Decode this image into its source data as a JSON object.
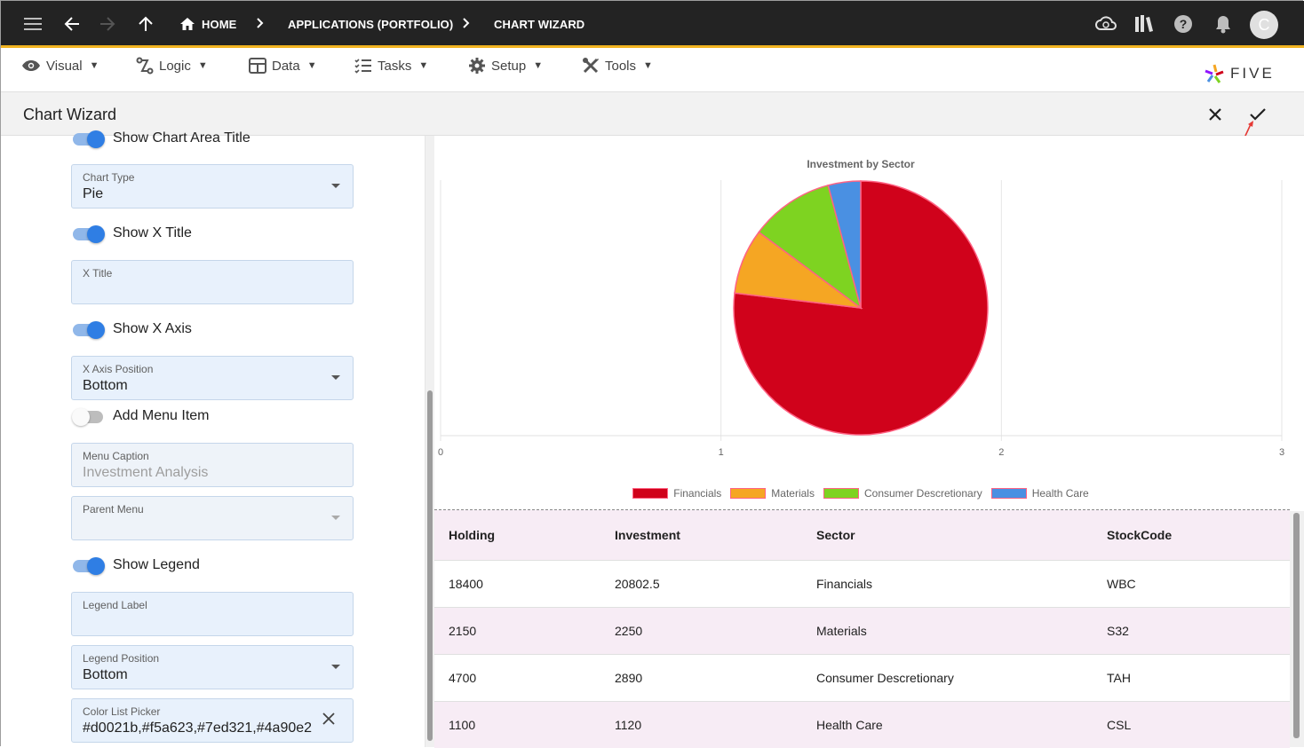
{
  "topbar": {
    "breadcrumbs": [
      "HOME",
      "APPLICATIONS (PORTFOLIO)",
      "CHART WIZARD"
    ],
    "avatar_letter": "C"
  },
  "menu": {
    "items": [
      {
        "label": "Visual",
        "icon": "eye-icon"
      },
      {
        "label": "Logic",
        "icon": "logic-icon"
      },
      {
        "label": "Data",
        "icon": "table-icon"
      },
      {
        "label": "Tasks",
        "icon": "tasks-icon"
      },
      {
        "label": "Setup",
        "icon": "gear-icon"
      },
      {
        "label": "Tools",
        "icon": "tools-icon"
      }
    ],
    "caret": "▼",
    "logo_text": "FIVE"
  },
  "page": {
    "title": "Chart Wizard"
  },
  "form": {
    "show_chart_area_title": "Show Chart Area Title",
    "chart_type_label": "Chart Type",
    "chart_type_value": "Pie",
    "show_x_title": "Show X Title",
    "x_title_label": "X Title",
    "x_title_value": "",
    "show_x_axis": "Show X Axis",
    "x_axis_position_label": "X Axis Position",
    "x_axis_position_value": "Bottom",
    "add_menu_item": "Add Menu Item",
    "menu_caption_label": "Menu Caption",
    "menu_caption_value": "Investment Analysis",
    "parent_menu_label": "Parent Menu",
    "parent_menu_value": "",
    "show_legend": "Show Legend",
    "legend_label_label": "Legend Label",
    "legend_label_value": "",
    "legend_position_label": "Legend Position",
    "legend_position_value": "Bottom",
    "color_list_label": "Color List Picker",
    "color_list_value": "#d0021b,#f5a623,#7ed321,#4a90e2"
  },
  "chart_data": {
    "type": "pie",
    "title": "Investment by Sector",
    "categories": [
      "Financials",
      "Materials",
      "Consumer Descretionary",
      "Health Care"
    ],
    "values": [
      20802.5,
      2250,
      2890,
      1120
    ],
    "colors": [
      "#d0021b",
      "#f5a623",
      "#7ed321",
      "#4a90e2"
    ],
    "border_color": "#ff6384",
    "x_ticks": [
      "0",
      "1",
      "2",
      "3"
    ],
    "legend_position": "bottom"
  },
  "table": {
    "columns": [
      "Holding",
      "Investment",
      "Sector",
      "StockCode"
    ],
    "rows": [
      [
        "18400",
        "20802.5",
        "Financials",
        "WBC"
      ],
      [
        "2150",
        "2250",
        "Materials",
        "S32"
      ],
      [
        "4700",
        "2890",
        "Consumer Descretionary",
        "TAH"
      ],
      [
        "1100",
        "1120",
        "Health Care",
        "CSL"
      ]
    ]
  }
}
